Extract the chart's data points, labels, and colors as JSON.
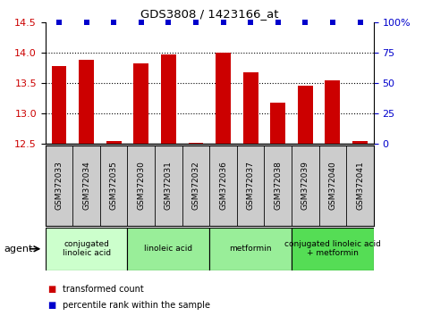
{
  "title": "GDS3808 / 1423166_at",
  "samples": [
    "GSM372033",
    "GSM372034",
    "GSM372035",
    "GSM372030",
    "GSM372031",
    "GSM372032",
    "GSM372036",
    "GSM372037",
    "GSM372038",
    "GSM372039",
    "GSM372040",
    "GSM372041"
  ],
  "bar_values": [
    13.78,
    13.88,
    12.54,
    13.82,
    13.97,
    12.52,
    14.0,
    13.67,
    13.17,
    13.45,
    13.55,
    12.55
  ],
  "percentile_values": [
    100,
    100,
    100,
    100,
    100,
    100,
    100,
    100,
    100,
    100,
    100,
    100
  ],
  "bar_color": "#cc0000",
  "percentile_color": "#0000cc",
  "ylim_left": [
    12.5,
    14.5
  ],
  "ylim_right": [
    0,
    100
  ],
  "yticks_left": [
    12.5,
    13.0,
    13.5,
    14.0,
    14.5
  ],
  "yticks_right": [
    0,
    25,
    50,
    75,
    100
  ],
  "dotted_lines": [
    13.0,
    13.5,
    14.0
  ],
  "groups": [
    {
      "label": "conjugated\nlinoleic acid",
      "start": 0,
      "end": 3,
      "color": "#ccffcc"
    },
    {
      "label": "linoleic acid",
      "start": 3,
      "end": 6,
      "color": "#99ee99"
    },
    {
      "label": "metformin",
      "start": 6,
      "end": 9,
      "color": "#99ee99"
    },
    {
      "label": "conjugated linoleic acid\n+ metformin",
      "start": 9,
      "end": 12,
      "color": "#55dd55"
    }
  ],
  "legend_items": [
    {
      "label": "transformed count",
      "color": "#cc0000"
    },
    {
      "label": "percentile rank within the sample",
      "color": "#0000cc"
    }
  ],
  "agent_label": "agent",
  "bar_width": 0.55,
  "baseline": 12.5,
  "sample_bg_color": "#cccccc",
  "background_color": "#ffffff",
  "tick_label_color_left": "#cc0000",
  "tick_label_color_right": "#0000cc",
  "grid_dotted_color": "#000000"
}
